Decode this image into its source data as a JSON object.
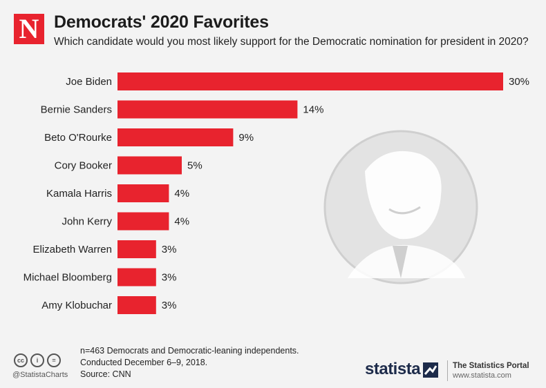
{
  "header": {
    "logo_letter": "N",
    "title": "Democrats' 2020 Favorites",
    "subtitle": "Which candidate would you most likely support for the Democratic nomination for president in 2020?"
  },
  "chart_data": {
    "type": "bar",
    "orientation": "horizontal",
    "title": "Democrats' 2020 Favorites",
    "subtitle": "Which candidate would you most likely support for the Democratic nomination for president in 2020?",
    "categories": [
      "Joe Biden",
      "Bernie Sanders",
      "Beto O'Rourke",
      "Cory Booker",
      "Kamala Harris",
      "John Kerry",
      "Elizabeth Warren",
      "Michael Bloomberg",
      "Amy Klobuchar"
    ],
    "values": [
      30,
      14,
      9,
      5,
      4,
      4,
      3,
      3,
      3
    ],
    "value_labels": [
      "30%",
      "14%",
      "9%",
      "5%",
      "4%",
      "4%",
      "3%",
      "3%",
      "3%"
    ],
    "unit": "%",
    "xlim": [
      0,
      30
    ],
    "grid": false,
    "bar_color": "#e8232e"
  },
  "footer": {
    "notes": [
      "n=463 Democrats and Democratic-leaning independents.",
      "Conducted December 6–9, 2018.",
      "Source: CNN"
    ],
    "cc_icons": [
      "cc",
      "i",
      "="
    ],
    "handle": "@StatistaCharts",
    "brand": "statista",
    "portal_title": "The Statistics Portal",
    "portal_url": "www.statista.com"
  },
  "colors": {
    "accent": "#e8232e",
    "background": "#f3f3f3",
    "brand_navy": "#1d2b4a"
  },
  "icons": {
    "logo": "newsweek-logo-icon",
    "portrait": "candidate-portrait-icon",
    "cc": "creative-commons-icon",
    "brand_mark": "statista-logo-icon"
  }
}
